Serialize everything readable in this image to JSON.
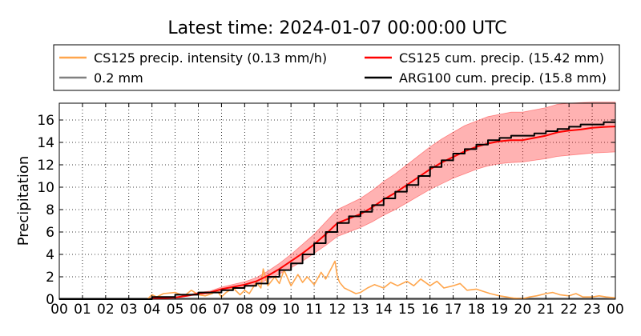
{
  "chart_data": {
    "type": "line",
    "title": "Latest time: 2024-01-07 00:00:00 UTC",
    "xlabel": "",
    "ylabel": "Precipitation",
    "ylim": [
      0,
      17.5
    ],
    "yticks": [
      0,
      2,
      4,
      6,
      8,
      10,
      12,
      14,
      16
    ],
    "xlim": [
      0,
      24
    ],
    "xtick_labels": [
      "00",
      "01",
      "02",
      "03",
      "04",
      "05",
      "06",
      "07",
      "08",
      "09",
      "10",
      "11",
      "12",
      "13",
      "14",
      "15",
      "16",
      "17",
      "18",
      "19",
      "20",
      "21",
      "22",
      "23",
      "00"
    ],
    "grid": true,
    "legend_position": "top",
    "legend": [
      {
        "label": "CS125 precip. intensity (0.13 mm/h)",
        "color": "#ffa64d"
      },
      {
        "label": "CS125 cum. precip. (15.42 mm)",
        "color": "#ff0000"
      },
      {
        "label": "0.2 mm",
        "color": "#808080"
      },
      {
        "label": "ARG100 cum. precip. (15.8 mm)",
        "color": "#000000"
      }
    ],
    "series": [
      {
        "name": "CS125 cum. precip. (15.42 mm)",
        "color": "#ff0000",
        "x": [
          0,
          1,
          2,
          3,
          3.9,
          4,
          4.5,
          5,
          5.5,
          6,
          6.5,
          7,
          7.5,
          8,
          8.5,
          9,
          9.5,
          10,
          10.5,
          11,
          11.5,
          12,
          12.5,
          13,
          13.5,
          14,
          14.5,
          15,
          15.5,
          16,
          16.5,
          17,
          17.5,
          18,
          18.5,
          19,
          19.5,
          20,
          20.5,
          21,
          21.5,
          22,
          22.5,
          23,
          23.5,
          24
        ],
        "y": [
          0,
          0,
          0,
          0,
          0,
          0.05,
          0.1,
          0.15,
          0.3,
          0.5,
          0.6,
          0.9,
          1.1,
          1.3,
          1.6,
          2.1,
          2.7,
          3.4,
          4.1,
          4.9,
          5.8,
          6.8,
          7.2,
          7.6,
          8.2,
          8.9,
          9.5,
          10.2,
          10.9,
          11.6,
          12.2,
          12.7,
          13.2,
          13.6,
          13.9,
          14.1,
          14.2,
          14.2,
          14.4,
          14.6,
          14.9,
          15.05,
          15.15,
          15.3,
          15.38,
          15.42
        ],
        "band_lower": [
          0,
          0,
          0,
          0,
          0,
          0.04,
          0.08,
          0.12,
          0.25,
          0.4,
          0.5,
          0.75,
          0.9,
          1.1,
          1.3,
          1.75,
          2.25,
          2.8,
          3.4,
          4.1,
          4.8,
          5.6,
          6.0,
          6.4,
          6.9,
          7.5,
          8.0,
          8.6,
          9.2,
          9.8,
          10.3,
          10.8,
          11.2,
          11.6,
          11.9,
          12.1,
          12.2,
          12.25,
          12.4,
          12.55,
          12.75,
          12.85,
          12.95,
          13.05,
          13.1,
          13.15
        ],
        "band_upper": [
          0,
          0,
          0,
          0,
          0,
          0.06,
          0.12,
          0.18,
          0.36,
          0.6,
          0.72,
          1.08,
          1.32,
          1.56,
          1.92,
          2.5,
          3.2,
          4.0,
          4.9,
          5.8,
          6.9,
          8.0,
          8.5,
          9.0,
          9.7,
          10.5,
          11.2,
          12.0,
          12.8,
          13.6,
          14.3,
          14.9,
          15.5,
          15.9,
          16.3,
          16.5,
          16.7,
          16.7,
          16.9,
          17.1,
          17.4,
          17.5,
          17.55,
          17.6,
          17.6,
          17.6
        ]
      },
      {
        "name": "ARG100 cum. precip. (15.8 mm)",
        "color": "#000000",
        "x": [
          0,
          1,
          2,
          3,
          4,
          4.5,
          5,
          5.5,
          6,
          6.5,
          7,
          7.5,
          8,
          8.5,
          9,
          9.5,
          10,
          10.5,
          11,
          11.5,
          12,
          12.5,
          13,
          13.5,
          14,
          14.5,
          15,
          15.5,
          16,
          16.5,
          17,
          17.5,
          18,
          18.5,
          19,
          19.5,
          20,
          20.5,
          21,
          21.5,
          22,
          22.5,
          23,
          23.5,
          24
        ],
        "y": [
          0,
          0,
          0,
          0,
          0.2,
          0.2,
          0.4,
          0.4,
          0.6,
          0.6,
          0.8,
          1.0,
          1.2,
          1.4,
          2.0,
          2.6,
          3.2,
          4.0,
          5.0,
          6.0,
          6.8,
          7.4,
          7.8,
          8.4,
          9.0,
          9.6,
          10.2,
          11.0,
          11.8,
          12.4,
          13.0,
          13.4,
          13.8,
          14.2,
          14.4,
          14.6,
          14.6,
          14.8,
          15.0,
          15.2,
          15.4,
          15.6,
          15.6,
          15.8,
          15.8
        ]
      },
      {
        "name": "CS125 precip. intensity (0.13 mm/h)",
        "color": "#ffa64d",
        "x": [
          0,
          1,
          2,
          3,
          3.8,
          4.0,
          4.2,
          4.5,
          5.0,
          5.4,
          5.7,
          6.0,
          6.3,
          6.6,
          6.8,
          7.0,
          7.2,
          7.5,
          7.8,
          8.0,
          8.2,
          8.5,
          8.7,
          8.8,
          9.0,
          9.3,
          9.5,
          9.7,
          10.0,
          10.3,
          10.5,
          10.7,
          11.0,
          11.3,
          11.5,
          11.7,
          11.9,
          12.0,
          12.1,
          12.3,
          12.5,
          12.8,
          13.0,
          13.3,
          13.6,
          14.0,
          14.3,
          14.6,
          15.0,
          15.3,
          15.6,
          16.0,
          16.3,
          16.6,
          17.0,
          17.3,
          17.6,
          18.0,
          18.3,
          18.6,
          19.0,
          19.3,
          19.6,
          20.0,
          20.3,
          20.6,
          21.0,
          21.3,
          21.6,
          22.0,
          22.3,
          22.6,
          23.0,
          23.3,
          23.6,
          24.0
        ],
        "y": [
          0,
          0,
          0,
          0,
          0,
          0.4,
          0.2,
          0.5,
          0.6,
          0.3,
          0.8,
          0.4,
          0.3,
          0.5,
          0.8,
          0.2,
          0.6,
          1.0,
          0.4,
          0.8,
          0.5,
          1.5,
          1.0,
          2.7,
          1.2,
          2.0,
          1.4,
          2.6,
          1.2,
          2.2,
          1.5,
          2.0,
          1.3,
          2.4,
          1.8,
          2.6,
          3.4,
          2.0,
          1.5,
          1.0,
          0.8,
          0.5,
          0.6,
          1.0,
          1.3,
          1.0,
          1.5,
          1.2,
          1.6,
          1.2,
          1.8,
          1.2,
          1.6,
          1.0,
          1.2,
          1.4,
          0.8,
          0.9,
          0.7,
          0.5,
          0.3,
          0.2,
          0.1,
          0.05,
          0.2,
          0.3,
          0.5,
          0.6,
          0.4,
          0.3,
          0.5,
          0.2,
          0.2,
          0.3,
          0.2,
          0.13
        ]
      },
      {
        "name": "0.2 mm",
        "color": "#808080",
        "x": [
          0,
          24
        ],
        "y": [
          0.05,
          0.05
        ]
      }
    ]
  }
}
